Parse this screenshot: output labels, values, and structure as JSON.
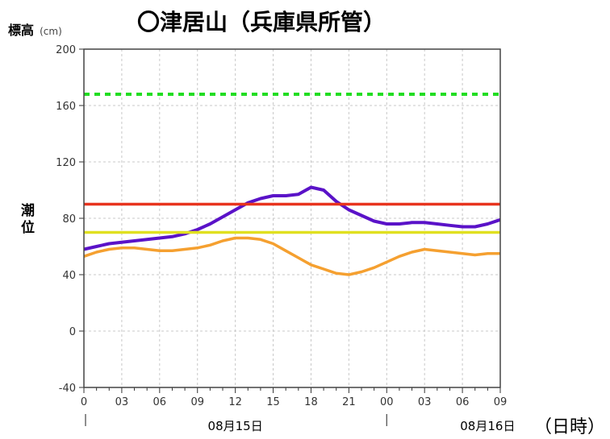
{
  "title": "〇津居山（兵庫県所管）",
  "ylabel_top": "標高",
  "ylabel_unit": "(cm)",
  "ylabel_side": "潮位",
  "xunit_label": "（日時）",
  "chart_data": {
    "type": "line",
    "title": "〇津居山（兵庫県所管）",
    "ylabel": "潮位",
    "yunit": "標高 (cm)",
    "ylim": [
      -40,
      200
    ],
    "yticks": [
      -40,
      0,
      40,
      80,
      120,
      160,
      200
    ],
    "xlabel": "（日時）",
    "x_tick_labels": [
      "0",
      "03",
      "06",
      "09",
      "12",
      "15",
      "18",
      "21",
      "00",
      "03",
      "06",
      "09"
    ],
    "x_hours": [
      0,
      3,
      6,
      9,
      12,
      15,
      18,
      21,
      24,
      27,
      30,
      33
    ],
    "xlim": [
      0,
      33
    ],
    "date_labels": [
      {
        "text": "08月15日",
        "hour": 12
      },
      {
        "text": "08月16日",
        "hour": 32
      }
    ],
    "grid": true,
    "series": [
      {
        "color": "#5a12c8",
        "x": [
          0,
          1,
          2,
          3,
          4,
          5,
          6,
          7,
          8,
          9,
          10,
          11,
          12,
          13,
          14,
          15,
          16,
          17,
          18,
          19,
          20,
          21,
          22,
          23,
          24,
          25,
          26,
          27,
          28,
          29,
          30,
          31,
          32,
          33
        ],
        "values": [
          58,
          60,
          62,
          63,
          64,
          65,
          66,
          67,
          69,
          72,
          76,
          81,
          86,
          91,
          94,
          96,
          96,
          97,
          102,
          100,
          92,
          86,
          82,
          78,
          76,
          76,
          77,
          77,
          76,
          75,
          74,
          74,
          76,
          79
        ]
      },
      {
        "color": "#f5a030",
        "x": [
          0,
          1,
          2,
          3,
          4,
          5,
          6,
          7,
          8,
          9,
          10,
          11,
          12,
          13,
          14,
          15,
          16,
          17,
          18,
          19,
          20,
          21,
          22,
          23,
          24,
          25,
          26,
          27,
          28,
          29,
          30,
          31,
          32,
          33
        ],
        "values": [
          53,
          56,
          58,
          59,
          59,
          58,
          57,
          57,
          58,
          59,
          61,
          64,
          66,
          66,
          65,
          62,
          57,
          52,
          47,
          44,
          41,
          40,
          42,
          45,
          49,
          53,
          56,
          58,
          57,
          56,
          55,
          54,
          55,
          55
        ]
      },
      {
        "color": "#e8341e",
        "style": "solid",
        "x": [
          0,
          33
        ],
        "values": [
          90,
          90
        ]
      },
      {
        "color": "#e0e020",
        "style": "solid",
        "x": [
          0,
          33
        ],
        "values": [
          70,
          70
        ]
      },
      {
        "color": "#22dd22",
        "style": "dashed",
        "x": [
          0,
          33
        ],
        "values": [
          168,
          168
        ]
      }
    ]
  }
}
